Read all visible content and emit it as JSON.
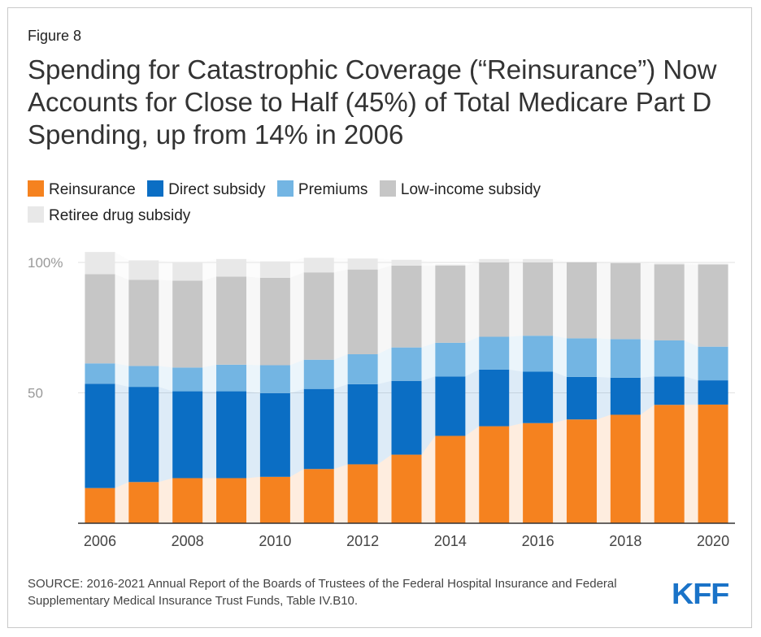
{
  "figure_label": "Figure 8",
  "title": "Spending for Catastrophic Coverage (“Reinsurance”) Now Accounts for Close to Half (45%) of Total Medicare Part D Spending, up from 14% in 2006",
  "source": "SOURCE: 2016-2021 Annual Report of the Boards of Trustees of the Federal Hospital Insurance and Federal Supplementary Medical Insurance Trust Funds, Table IV.B10.",
  "logo": "KFF",
  "legend": [
    {
      "label": "Reinsurance",
      "color": "#f5821f"
    },
    {
      "label": "Direct subsidy",
      "color": "#0b6ec4"
    },
    {
      "label": "Premiums",
      "color": "#73b5e3"
    },
    {
      "label": "Low-income subsidy",
      "color": "#c6c6c6"
    },
    {
      "label": "Retiree drug subsidy",
      "color": "#e8e8e8"
    }
  ],
  "chart_data": {
    "type": "bar",
    "stacked": true,
    "x": [
      "2006",
      "2007",
      "2008",
      "2009",
      "2010",
      "2011",
      "2012",
      "2013",
      "2014",
      "2015",
      "2016",
      "2017",
      "2018",
      "2019",
      "2020"
    ],
    "xticks": [
      "2006",
      "2008",
      "2010",
      "2012",
      "2014",
      "2016",
      "2018",
      "2020"
    ],
    "yticks": [
      {
        "value": 100,
        "label": "100%"
      },
      {
        "value": 50,
        "label": "50"
      }
    ],
    "ylim": [
      0,
      100
    ],
    "grid": true,
    "legend_position": "top",
    "series": [
      {
        "name": "Reinsurance",
        "color": "#f5821f",
        "values": [
          13.5,
          15.8,
          17.3,
          17.3,
          17.8,
          20.8,
          22.6,
          26.3,
          33.5,
          37.2,
          38.4,
          39.8,
          41.6,
          45.4,
          45.5
        ]
      },
      {
        "name": "Direct subsidy",
        "color": "#0b6ec4",
        "values": [
          40,
          36.5,
          33.3,
          33.3,
          32.1,
          30.7,
          30.7,
          28.3,
          22.8,
          21.7,
          19.7,
          16.3,
          14.2,
          10.9,
          9.3
        ]
      },
      {
        "name": "Premiums",
        "color": "#73b5e3",
        "values": [
          7.8,
          8,
          9.1,
          10.2,
          10.7,
          11.2,
          11.5,
          12.8,
          12.9,
          12.6,
          13.8,
          14.8,
          14.8,
          13.8,
          12.9
        ]
      },
      {
        "name": "Low-income subsidy",
        "color": "#c6c6c6",
        "values": [
          34.2,
          33,
          33.3,
          33.8,
          33.5,
          33.5,
          32.5,
          31.4,
          29.6,
          28.5,
          28.1,
          29.1,
          29.2,
          29.2,
          31.5
        ]
      },
      {
        "name": "Retiree drug subsidy",
        "color": "#e8e8e8",
        "values": [
          8.5,
          7.5,
          7,
          6.7,
          6.3,
          5.6,
          4.2,
          2.2,
          0.4,
          1.3,
          1.3,
          0.3,
          0.3,
          0.3,
          0.3
        ]
      }
    ]
  }
}
